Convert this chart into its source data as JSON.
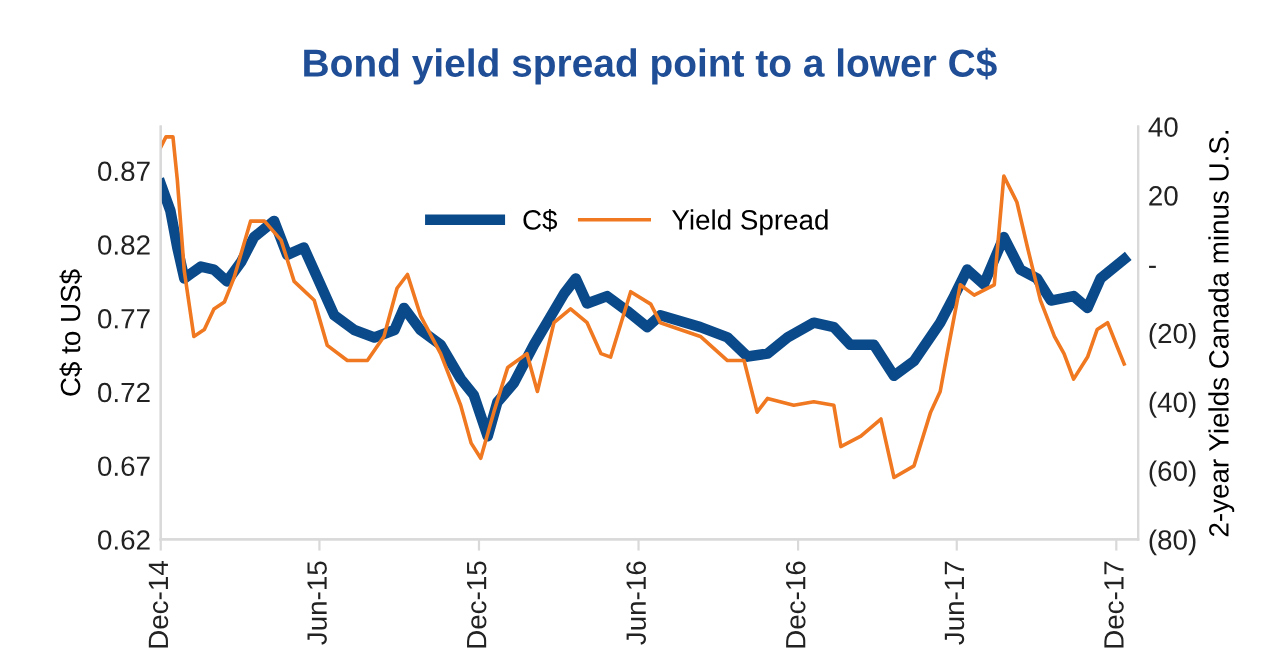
{
  "chart_data": {
    "type": "line",
    "title": "Bond yield spread point to a lower C$",
    "ylabel": "C$ to US$",
    "y2label": "2-year Yields Canada minus U.S.",
    "xlim": [
      "2014-12-01",
      "2017-12-26"
    ],
    "xticks": [
      {
        "value": "2014-12-01",
        "label": "Dec-14"
      },
      {
        "value": "2015-06-01",
        "label": "Jun-15"
      },
      {
        "value": "2015-12-01",
        "label": "Dec-15"
      },
      {
        "value": "2016-06-01",
        "label": "Jun-16"
      },
      {
        "value": "2016-12-01",
        "label": "Dec-16"
      },
      {
        "value": "2017-06-01",
        "label": "Jun-17"
      },
      {
        "value": "2017-12-01",
        "label": "Dec-17"
      }
    ],
    "ylim": [
      0.62,
      0.9
    ],
    "yticks": [
      0.62,
      0.67,
      0.72,
      0.77,
      0.82,
      0.87
    ],
    "y2lim": [
      -80,
      40
    ],
    "y2ticks": [
      {
        "value": -80,
        "label": "(80)"
      },
      {
        "value": -60,
        "label": "(60)"
      },
      {
        "value": -40,
        "label": "(40)"
      },
      {
        "value": -20,
        "label": "(20)"
      },
      {
        "value": 0,
        "label": "-"
      },
      {
        "value": 20,
        "label": "20"
      },
      {
        "value": 40,
        "label": "40"
      }
    ],
    "legend": "top",
    "grid": false,
    "series": [
      {
        "name": "C$",
        "color": "#0a4a8a",
        "x": [
          "2014-12-01",
          "2014-12-12",
          "2014-12-20",
          "2014-12-28",
          "2015-01-04",
          "2015-01-16",
          "2015-01-31",
          "2015-02-15",
          "2015-03-03",
          "2015-03-18",
          "2015-04-10",
          "2015-04-25",
          "2015-05-14",
          "2015-05-30",
          "2015-06-18",
          "2015-07-11",
          "2015-08-03",
          "2015-08-26",
          "2015-09-06",
          "2015-09-25",
          "2015-10-18",
          "2015-11-10",
          "2015-11-25",
          "2015-12-11",
          "2015-12-22",
          "2016-01-10",
          "2016-02-02",
          "2016-02-17",
          "2016-03-08",
          "2016-03-21",
          "2016-04-03",
          "2016-04-26",
          "2016-05-19",
          "2016-06-11",
          "2016-06-26",
          "2016-08-11",
          "2016-09-11",
          "2016-10-04",
          "2016-10-27",
          "2016-11-19",
          "2016-12-19",
          "2017-01-11",
          "2017-01-30",
          "2017-02-26",
          "2017-03-21",
          "2017-04-13",
          "2017-05-13",
          "2017-05-29",
          "2017-06-13",
          "2017-07-02",
          "2017-07-25",
          "2017-08-13",
          "2017-09-01",
          "2017-09-17",
          "2017-10-13",
          "2017-10-29",
          "2017-11-13",
          "2017-12-10"
        ],
        "values": [
          0.861,
          0.843,
          0.818,
          0.797,
          0.8,
          0.805,
          0.803,
          0.795,
          0.808,
          0.825,
          0.836,
          0.813,
          0.818,
          0.797,
          0.772,
          0.762,
          0.757,
          0.762,
          0.777,
          0.762,
          0.752,
          0.729,
          0.718,
          0.69,
          0.713,
          0.726,
          0.752,
          0.767,
          0.787,
          0.797,
          0.78,
          0.785,
          0.775,
          0.764,
          0.772,
          0.764,
          0.757,
          0.744,
          0.746,
          0.757,
          0.767,
          0.764,
          0.752,
          0.752,
          0.731,
          0.741,
          0.767,
          0.785,
          0.803,
          0.793,
          0.825,
          0.803,
          0.797,
          0.782,
          0.785,
          0.777,
          0.797,
          0.81
        ]
      },
      {
        "name": "Yield Spread",
        "color": "#f07820",
        "axis": "y2",
        "x": [
          "2014-12-01",
          "2014-12-07",
          "2014-12-15",
          "2014-12-20",
          "2014-12-28",
          "2015-01-08",
          "2015-01-20",
          "2015-01-31",
          "2015-02-12",
          "2015-02-23",
          "2015-03-14",
          "2015-03-30",
          "2015-04-18",
          "2015-05-03",
          "2015-05-26",
          "2015-06-10",
          "2015-07-03",
          "2015-07-26",
          "2015-08-14",
          "2015-08-29",
          "2015-09-10",
          "2015-09-25",
          "2015-10-18",
          "2015-11-10",
          "2015-11-22",
          "2015-12-03",
          "2015-12-18",
          "2016-01-03",
          "2016-01-25",
          "2016-02-06",
          "2016-02-25",
          "2016-03-15",
          "2016-04-03",
          "2016-04-19",
          "2016-04-30",
          "2016-05-23",
          "2016-06-15",
          "2016-06-26",
          "2016-08-11",
          "2016-09-11",
          "2016-09-30",
          "2016-10-15",
          "2016-10-27",
          "2016-11-26",
          "2016-12-19",
          "2017-01-11",
          "2017-01-19",
          "2017-02-11",
          "2017-03-06",
          "2017-03-21",
          "2017-04-13",
          "2017-05-02",
          "2017-05-13",
          "2017-05-21",
          "2017-06-05",
          "2017-06-21",
          "2017-07-14",
          "2017-07-25",
          "2017-08-09",
          "2017-08-21",
          "2017-09-05",
          "2017-09-21",
          "2017-10-02",
          "2017-10-13",
          "2017-10-29",
          "2017-11-09",
          "2017-11-21",
          "2017-12-02",
          "2017-12-10"
        ],
        "values": [
          34,
          37,
          37,
          24.5,
          -2,
          -21,
          -19,
          -13,
          -11,
          -4,
          12.5,
          12.5,
          7,
          -5,
          -10.5,
          -23.6,
          -28,
          -28,
          -21,
          -7,
          -3,
          -15,
          -26,
          -41,
          -52,
          -56.4,
          -43,
          -30,
          -26,
          -37,
          -17,
          -13,
          -17,
          -26,
          -27,
          -8,
          -11.6,
          -17,
          -21,
          -28,
          -28,
          -43,
          -39,
          -41,
          -40,
          -41,
          -53,
          -50,
          -45,
          -62,
          -58.6,
          -43,
          -37,
          -26,
          -6,
          -9,
          -6,
          25.6,
          18,
          5,
          -10.5,
          -21,
          -26,
          -33.4,
          -27,
          -19,
          -17,
          -24,
          -29
        ]
      }
    ]
  }
}
